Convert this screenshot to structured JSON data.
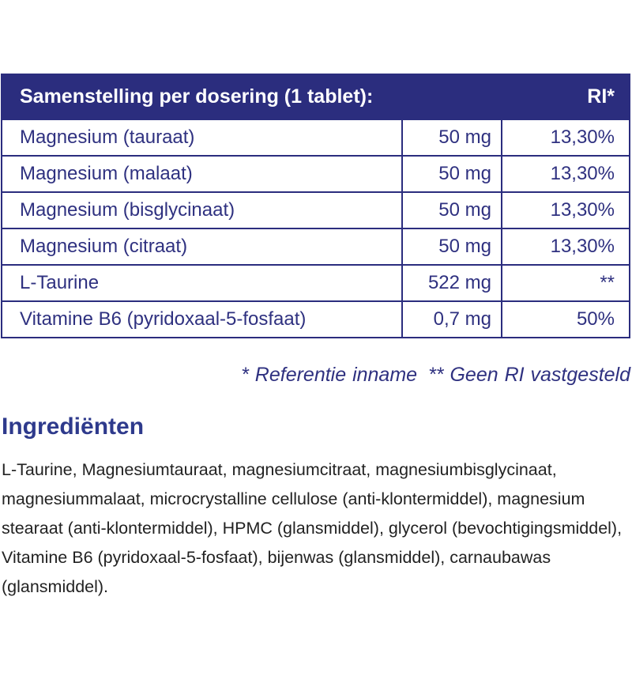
{
  "table": {
    "header": {
      "title": "Samenstelling per dosering (1 tablet):",
      "ri": "RI*"
    },
    "rows": [
      [
        "Magnesium (tauraat)",
        "50 mg",
        "13,30%"
      ],
      [
        "Magnesium (malaat)",
        "50 mg",
        "13,30%"
      ],
      [
        "Magnesium (bisglycinaat)",
        "50 mg",
        "13,30%"
      ],
      [
        "Magnesium (citraat)",
        "50 mg",
        "13,30%"
      ],
      [
        "L-Taurine",
        "522 mg",
        "**"
      ],
      [
        "Vitamine B6 (pyridoxaal-5-fosfaat)",
        "0,7 mg",
        "50%"
      ]
    ]
  },
  "footnote": {
    "ri": "* Referentie inname",
    "none": "** Geen RI vastgesteld"
  },
  "ingredients": {
    "title": "Ingrediënten",
    "text": "L-Taurine, Magnesiumtauraat, magnesiumcitraat, magnesiumbisglycinaat, magnesiummalaat, microcrystalline cellulose (anti-klontermiddel), magnesium stearaat (anti-klontermiddel), HPMC (glansmiddel), glycerol (bevochtigingsmiddel), Vitamine B6 (pyridoxaal-5-fosfaat), bijenwas (glansmiddel), carnaubawas (glansmiddel)."
  }
}
